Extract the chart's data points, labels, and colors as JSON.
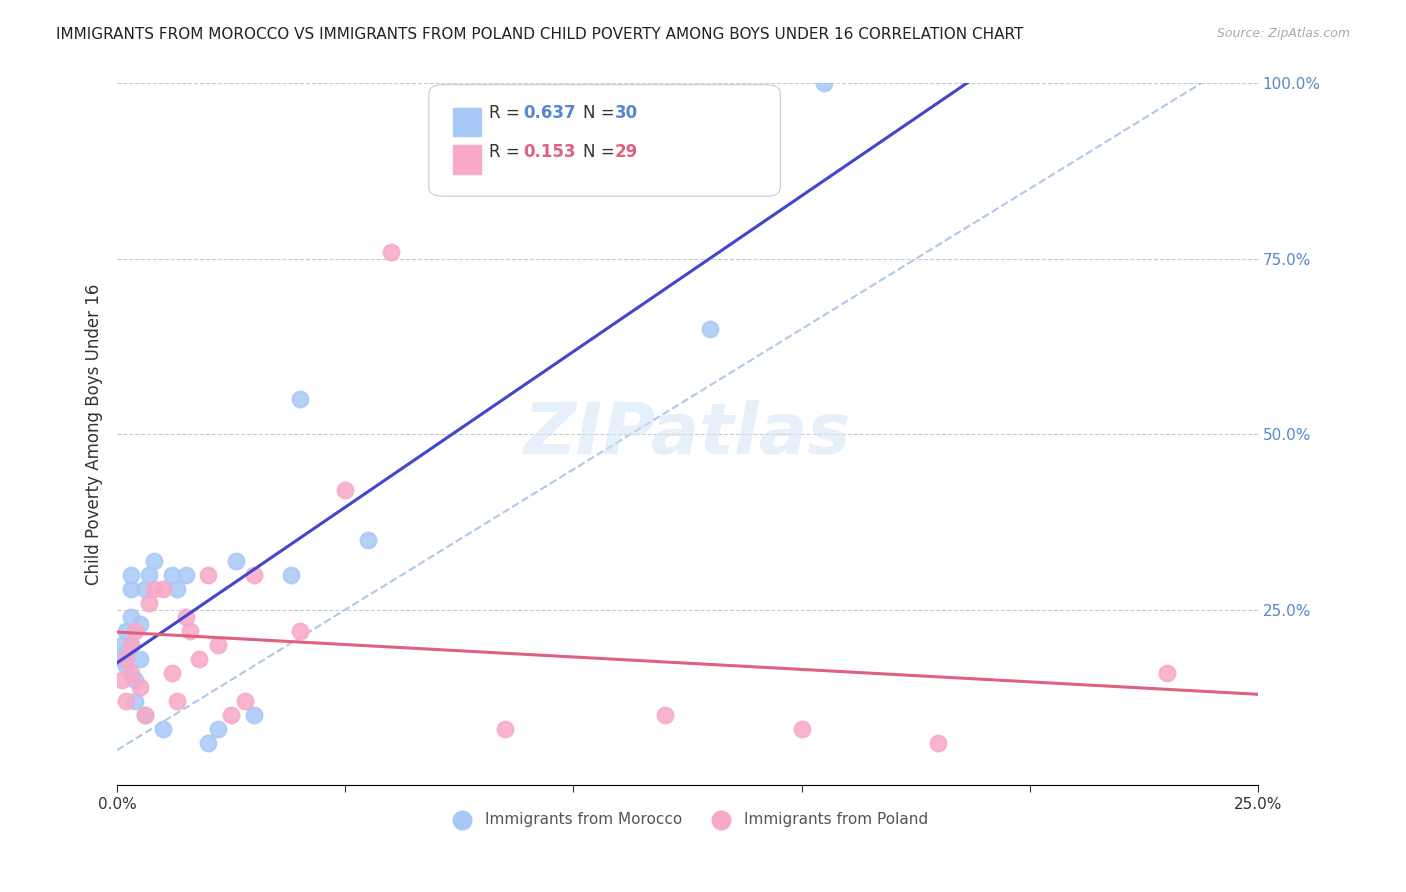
{
  "title": "IMMIGRANTS FROM MOROCCO VS IMMIGRANTS FROM POLAND CHILD POVERTY AMONG BOYS UNDER 16 CORRELATION CHART",
  "source": "Source: ZipAtlas.com",
  "ylabel": "Child Poverty Among Boys Under 16",
  "xlim": [
    0,
    0.25
  ],
  "ylim": [
    0,
    1.0
  ],
  "xticks": [
    0,
    0.05,
    0.1,
    0.15,
    0.2,
    0.25
  ],
  "xtick_labels": [
    "0.0%",
    "",
    "",
    "",
    "",
    "25.0%"
  ],
  "yticks_right": [
    0,
    0.25,
    0.5,
    0.75,
    1.0
  ],
  "ytick_labels_right": [
    "",
    "25.0%",
    "50.0%",
    "75.0%",
    "100.0%"
  ],
  "morocco_color": "#a8c8f8",
  "poland_color": "#f8a8c8",
  "morocco_line_color": "#4444cc",
  "poland_line_color": "#e06080",
  "ref_line_color": "#b0c8e8",
  "legend_label_morocco": "Immigrants from Morocco",
  "legend_label_poland": "Immigrants from Poland",
  "watermark": "ZIPatlas",
  "background_color": "#ffffff",
  "grid_color": "#cccccc",
  "morocco_x": [
    0.001,
    0.001,
    0.002,
    0.002,
    0.002,
    0.003,
    0.003,
    0.003,
    0.003,
    0.004,
    0.004,
    0.005,
    0.005,
    0.006,
    0.006,
    0.007,
    0.008,
    0.01,
    0.012,
    0.013,
    0.015,
    0.02,
    0.022,
    0.026,
    0.03,
    0.038,
    0.04,
    0.055,
    0.13,
    0.155
  ],
  "morocco_y": [
    0.18,
    0.2,
    0.17,
    0.22,
    0.19,
    0.2,
    0.24,
    0.28,
    0.3,
    0.12,
    0.15,
    0.18,
    0.23,
    0.1,
    0.28,
    0.3,
    0.32,
    0.08,
    0.3,
    0.28,
    0.3,
    0.06,
    0.08,
    0.32,
    0.1,
    0.3,
    0.55,
    0.35,
    0.65,
    1.0
  ],
  "poland_x": [
    0.001,
    0.002,
    0.002,
    0.003,
    0.003,
    0.004,
    0.005,
    0.006,
    0.007,
    0.008,
    0.01,
    0.012,
    0.013,
    0.015,
    0.016,
    0.018,
    0.02,
    0.022,
    0.025,
    0.028,
    0.03,
    0.04,
    0.05,
    0.06,
    0.085,
    0.12,
    0.15,
    0.18,
    0.23
  ],
  "poland_y": [
    0.15,
    0.18,
    0.12,
    0.2,
    0.16,
    0.22,
    0.14,
    0.1,
    0.26,
    0.28,
    0.28,
    0.16,
    0.12,
    0.24,
    0.22,
    0.18,
    0.3,
    0.2,
    0.1,
    0.12,
    0.3,
    0.22,
    0.42,
    0.76,
    0.08,
    0.1,
    0.08,
    0.06,
    0.16
  ]
}
